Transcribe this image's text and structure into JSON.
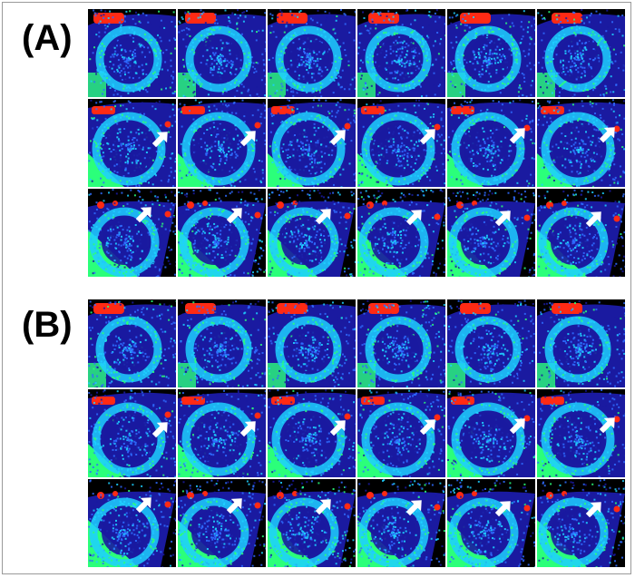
{
  "panels": [
    {
      "label": "(A)",
      "rows": 3,
      "cols": 6,
      "arrows": [
        [],
        [
          "r1c0",
          "r1c1",
          "r1c2",
          "r1c3",
          "r1c4",
          "r1c5"
        ],
        [
          "r2c0",
          "r2c1",
          "r2c2",
          "r2c3",
          "r2c4",
          "r2c5"
        ]
      ]
    },
    {
      "label": "(B)",
      "rows": 3,
      "cols": 6,
      "arrows": [
        [],
        [
          "r1c0",
          "r1c1",
          "r1c2",
          "r1c3",
          "r1c4",
          "r1c5"
        ],
        [
          "r2c0",
          "r2c1",
          "r2c2",
          "r2c3",
          "r2c4",
          "r2c5"
        ]
      ]
    }
  ],
  "colormap": {
    "background": "#000000",
    "low": "#1a1aa0",
    "mid_low": "#2f6cff",
    "mid": "#1fd0ff",
    "mid_high": "#2bff7a",
    "high": "#ff2a14"
  },
  "icons": {
    "arrow": "white-arrow-icon"
  }
}
